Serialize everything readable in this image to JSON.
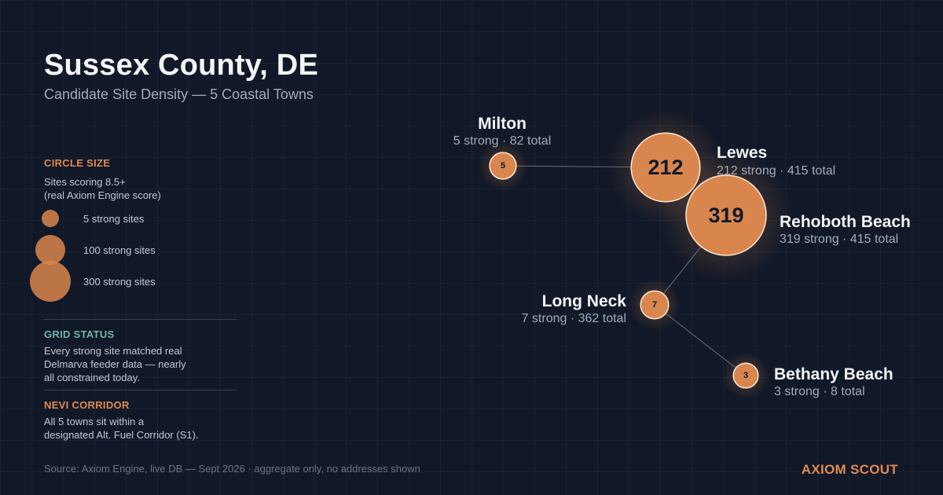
{
  "header": {
    "title": "Sussex County, DE",
    "subtitle": "Candidate Site Density — 5 Coastal Towns"
  },
  "legend": {
    "circle_size": {
      "heading": "CIRCLE SIZE",
      "description_line1": "Sites scoring 8.5+",
      "description_line2": "(real Axiom Engine score)",
      "samples": [
        {
          "value": 5,
          "label": "5 strong sites"
        },
        {
          "value": 100,
          "label": "100 strong sites"
        },
        {
          "value": 300,
          "label": "300 strong sites"
        }
      ]
    },
    "grid_status": {
      "heading": "GRID STATUS",
      "lines": [
        "Every strong site matched real",
        "Delmarva feeder data — nearly",
        "all constrained today."
      ]
    },
    "nevi_corridor": {
      "heading": "NEVI CORRIDOR",
      "lines": [
        "All 5 towns sit within a",
        "designated Alt. Fuel Corridor (S1)."
      ]
    }
  },
  "colors": {
    "bubble": "#d9864e",
    "bubble_stroke": "#fde7d2",
    "orange_heading": "#e08a4f",
    "teal_heading": "#6fb7a6",
    "connector": "#8b93a1"
  },
  "towns": [
    {
      "name": "Milton",
      "strong": 5,
      "total": 82,
      "stat": "5 strong · 82 total"
    },
    {
      "name": "Lewes",
      "strong": 212,
      "total": 415,
      "stat": "212 strong · 415 total"
    },
    {
      "name": "Rehoboth Beach",
      "strong": 319,
      "total": 415,
      "stat": "319 strong · 415 total"
    },
    {
      "name": "Long Neck",
      "strong": 7,
      "total": 362,
      "stat": "7 strong · 362 total"
    },
    {
      "name": "Bethany Beach",
      "strong": 3,
      "total": 8,
      "stat": "3 strong · 8 total"
    }
  ],
  "footer": {
    "source": "Source: Axiom Engine, live DB — Sept 2026 · aggregate only, no addresses shown",
    "brand": "AXIOM SCOUT"
  }
}
